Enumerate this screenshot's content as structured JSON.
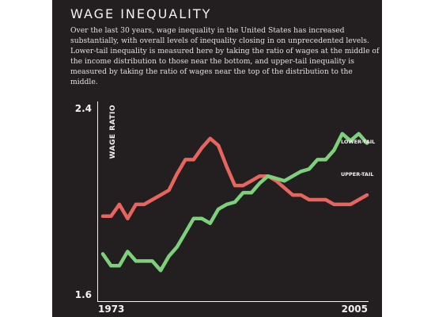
{
  "chart_data": {
    "type": "line",
    "title": "WAGE INEQUALITY",
    "subtitle": "Over the last 30 years, wage inequality in the United States has increased substantially, with overall levels of inequality closing in on unprecedented levels. Lower-tail inequality is measured here by taking the ratio of wages at the middle of the income distribution to those near the bottom, and upper-tail inequality is measured by taking the ratio of wages near the top of the distribution to the middle.",
    "ylabel": "WAGE RATIO",
    "xlabel": "",
    "ylim": [
      1.6,
      2.4
    ],
    "xlim": [
      1973,
      2005
    ],
    "x_tick_labels": [
      "1973",
      "2005"
    ],
    "y_tick_labels": [
      "2.4",
      "1.6"
    ],
    "grid": false,
    "x": [
      1973,
      1974,
      1975,
      1976,
      1977,
      1978,
      1979,
      1980,
      1981,
      1982,
      1983,
      1984,
      1985,
      1986,
      1987,
      1988,
      1989,
      1990,
      1991,
      1992,
      1993,
      1994,
      1995,
      1996,
      1997,
      1998,
      1999,
      2000,
      2001,
      2002,
      2003,
      2004,
      2005
    ],
    "series": [
      {
        "name": "LOWER-TAIL",
        "color": "#e8645f",
        "values": [
          1.93,
          1.93,
          1.98,
          1.92,
          1.98,
          1.98,
          2.0,
          2.02,
          2.04,
          2.11,
          2.17,
          2.17,
          2.22,
          2.26,
          2.23,
          2.14,
          2.06,
          2.06,
          2.08,
          2.1,
          2.1,
          2.08,
          2.05,
          2.02,
          2.02,
          2.0,
          2.0,
          2.0,
          1.98,
          1.98,
          1.98,
          2.0,
          2.02
        ]
      },
      {
        "name": "UPPER-TAIL",
        "color": "#7ed17b",
        "values": [
          1.77,
          1.72,
          1.72,
          1.78,
          1.74,
          1.74,
          1.74,
          1.7,
          1.76,
          1.8,
          1.86,
          1.92,
          1.92,
          1.9,
          1.96,
          1.98,
          1.99,
          2.03,
          2.03,
          2.07,
          2.1,
          2.09,
          2.08,
          2.1,
          2.12,
          2.13,
          2.17,
          2.17,
          2.21,
          2.28,
          2.25,
          2.28,
          2.24
        ]
      }
    ]
  }
}
